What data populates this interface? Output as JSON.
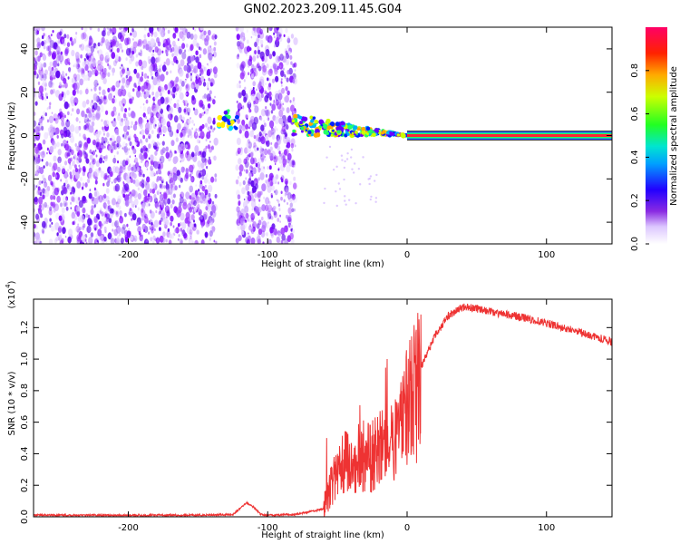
{
  "figure_title": "GN02.2023.209.11.45.G04",
  "chart_data": [
    {
      "type": "heatmap",
      "xlabel": "Height of straight line (km)",
      "ylabel": "Frequency (Hz)",
      "xlim": [
        -268,
        147
      ],
      "ylim": [
        -50,
        50
      ],
      "x_ticks": [
        -200,
        -100,
        0,
        100
      ],
      "y_ticks": [
        -40,
        -20,
        0,
        20,
        40
      ],
      "colorbar": {
        "label": "Normalized spectral amplitude",
        "range": [
          0,
          1
        ],
        "ticks": [
          "0.0",
          "0.2",
          "0.4",
          "0.6",
          "0.8"
        ]
      },
      "features": {
        "noise_regions_km": [
          [
            -268,
            -137
          ],
          [
            -122,
            -80
          ]
        ],
        "tone_start_km": -80,
        "tone_steady_from_km": 0,
        "tone_frequency_hz": 0
      }
    },
    {
      "type": "line",
      "xlabel": "Height of straight line (km)",
      "ylabel": "SNR (10 * v/v)",
      "y_scale_label": "(x10",
      "y_scale_exp": "4",
      "xlim": [
        -268,
        147
      ],
      "ylim": [
        0,
        1.38
      ],
      "x_ticks": [
        -200,
        -100,
        0,
        100
      ],
      "y_ticks": [
        "0.0",
        "0.2",
        "0.4",
        "0.6",
        "0.8",
        "1.0",
        "1.2"
      ],
      "series": [
        {
          "color": "#ee3333",
          "x": [
            -268,
            -250,
            -200,
            -150,
            -125,
            -115,
            -110,
            -105,
            -100,
            -80,
            -60,
            -55,
            -50,
            -45,
            -40,
            -35,
            -30,
            -25,
            -20,
            -15,
            -10,
            -5,
            0,
            10,
            20,
            30,
            40,
            50,
            60,
            80,
            100,
            120,
            147
          ],
          "y": [
            0.01,
            0.01,
            0.01,
            0.01,
            0.015,
            0.09,
            0.06,
            0.015,
            0.01,
            0.015,
            0.05,
            0.2,
            0.3,
            0.35,
            0.35,
            0.38,
            0.4,
            0.42,
            0.45,
            0.48,
            0.5,
            0.55,
            0.72,
            0.95,
            1.15,
            1.28,
            1.33,
            1.32,
            1.3,
            1.27,
            1.23,
            1.18,
            1.11
          ]
        }
      ]
    }
  ]
}
